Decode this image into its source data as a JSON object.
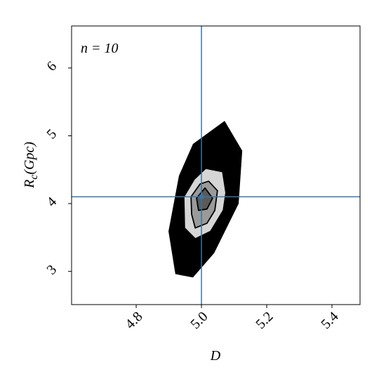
{
  "chart_data": {
    "type": "contour",
    "annotation": "n = 10",
    "xlabel": "D",
    "ylabel": {
      "main": "R",
      "sub": "c",
      "rest": "(Gpc)"
    },
    "xlim": [
      4.602,
      5.486
    ],
    "ylim": [
      2.51,
      6.62
    ],
    "xticks": [
      4.8,
      {
        "value": 5.0,
        "label": "5.0"
      },
      5.2,
      5.4
    ],
    "yticks": [
      3,
      4,
      5,
      6
    ],
    "truth": {
      "x": 5.0,
      "y": 4.1,
      "color": "#3a75a8"
    },
    "levels": [
      {
        "color": "#000000",
        "x": [
          4.92,
          4.899,
          4.931,
          4.974,
          5.071,
          5.125,
          5.114,
          5.039,
          4.974
        ],
        "y": [
          2.96,
          3.59,
          4.41,
          4.88,
          5.22,
          4.78,
          4.0,
          3.27,
          2.91
        ]
      },
      {
        "color": "#d6d6d6",
        "x": [
          4.946,
          4.978,
          5.013,
          5.065,
          5.075,
          5.067,
          5.028,
          4.981,
          4.948
        ],
        "y": [
          4.1,
          4.36,
          4.52,
          4.47,
          4.16,
          3.9,
          3.59,
          3.48,
          3.64
        ]
      },
      {
        "color": "#9a9a9a",
        "x": [
          4.968,
          4.996,
          5.022,
          5.049,
          5.041,
          5.017,
          4.981,
          4.97
        ],
        "y": [
          4.1,
          4.29,
          4.33,
          4.19,
          3.9,
          3.71,
          3.64,
          3.84
        ]
      },
      {
        "color": "#5a5a5a",
        "x": [
          4.985,
          5.011,
          5.034,
          5.017,
          4.991
        ],
        "y": [
          4.08,
          4.23,
          4.08,
          3.92,
          3.9
        ]
      }
    ]
  }
}
